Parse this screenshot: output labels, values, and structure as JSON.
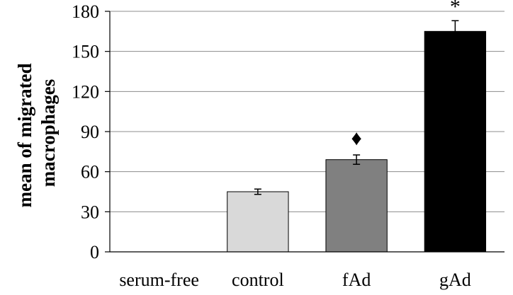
{
  "chart_data": {
    "type": "bar",
    "title": "",
    "xlabel": "",
    "ylabel": [
      "mean of migrated",
      "macrophages"
    ],
    "categories": [
      "serum-free",
      "control",
      "fAd",
      "gAd"
    ],
    "values": [
      0,
      45,
      69,
      165
    ],
    "errors": [
      0,
      2,
      3.5,
      8
    ],
    "annotations": [
      "",
      "",
      "♦",
      "*"
    ],
    "bar_colors": [
      "#ffffff",
      "#d9d9d9",
      "#808080",
      "#000000"
    ],
    "ylim": [
      0,
      180
    ],
    "yticks": [
      "0",
      "30",
      "60",
      "90",
      "120",
      "150",
      "180"
    ],
    "ytick_values": [
      0,
      30,
      60,
      90,
      120,
      150,
      180
    ],
    "grid": true,
    "legend": "none"
  }
}
